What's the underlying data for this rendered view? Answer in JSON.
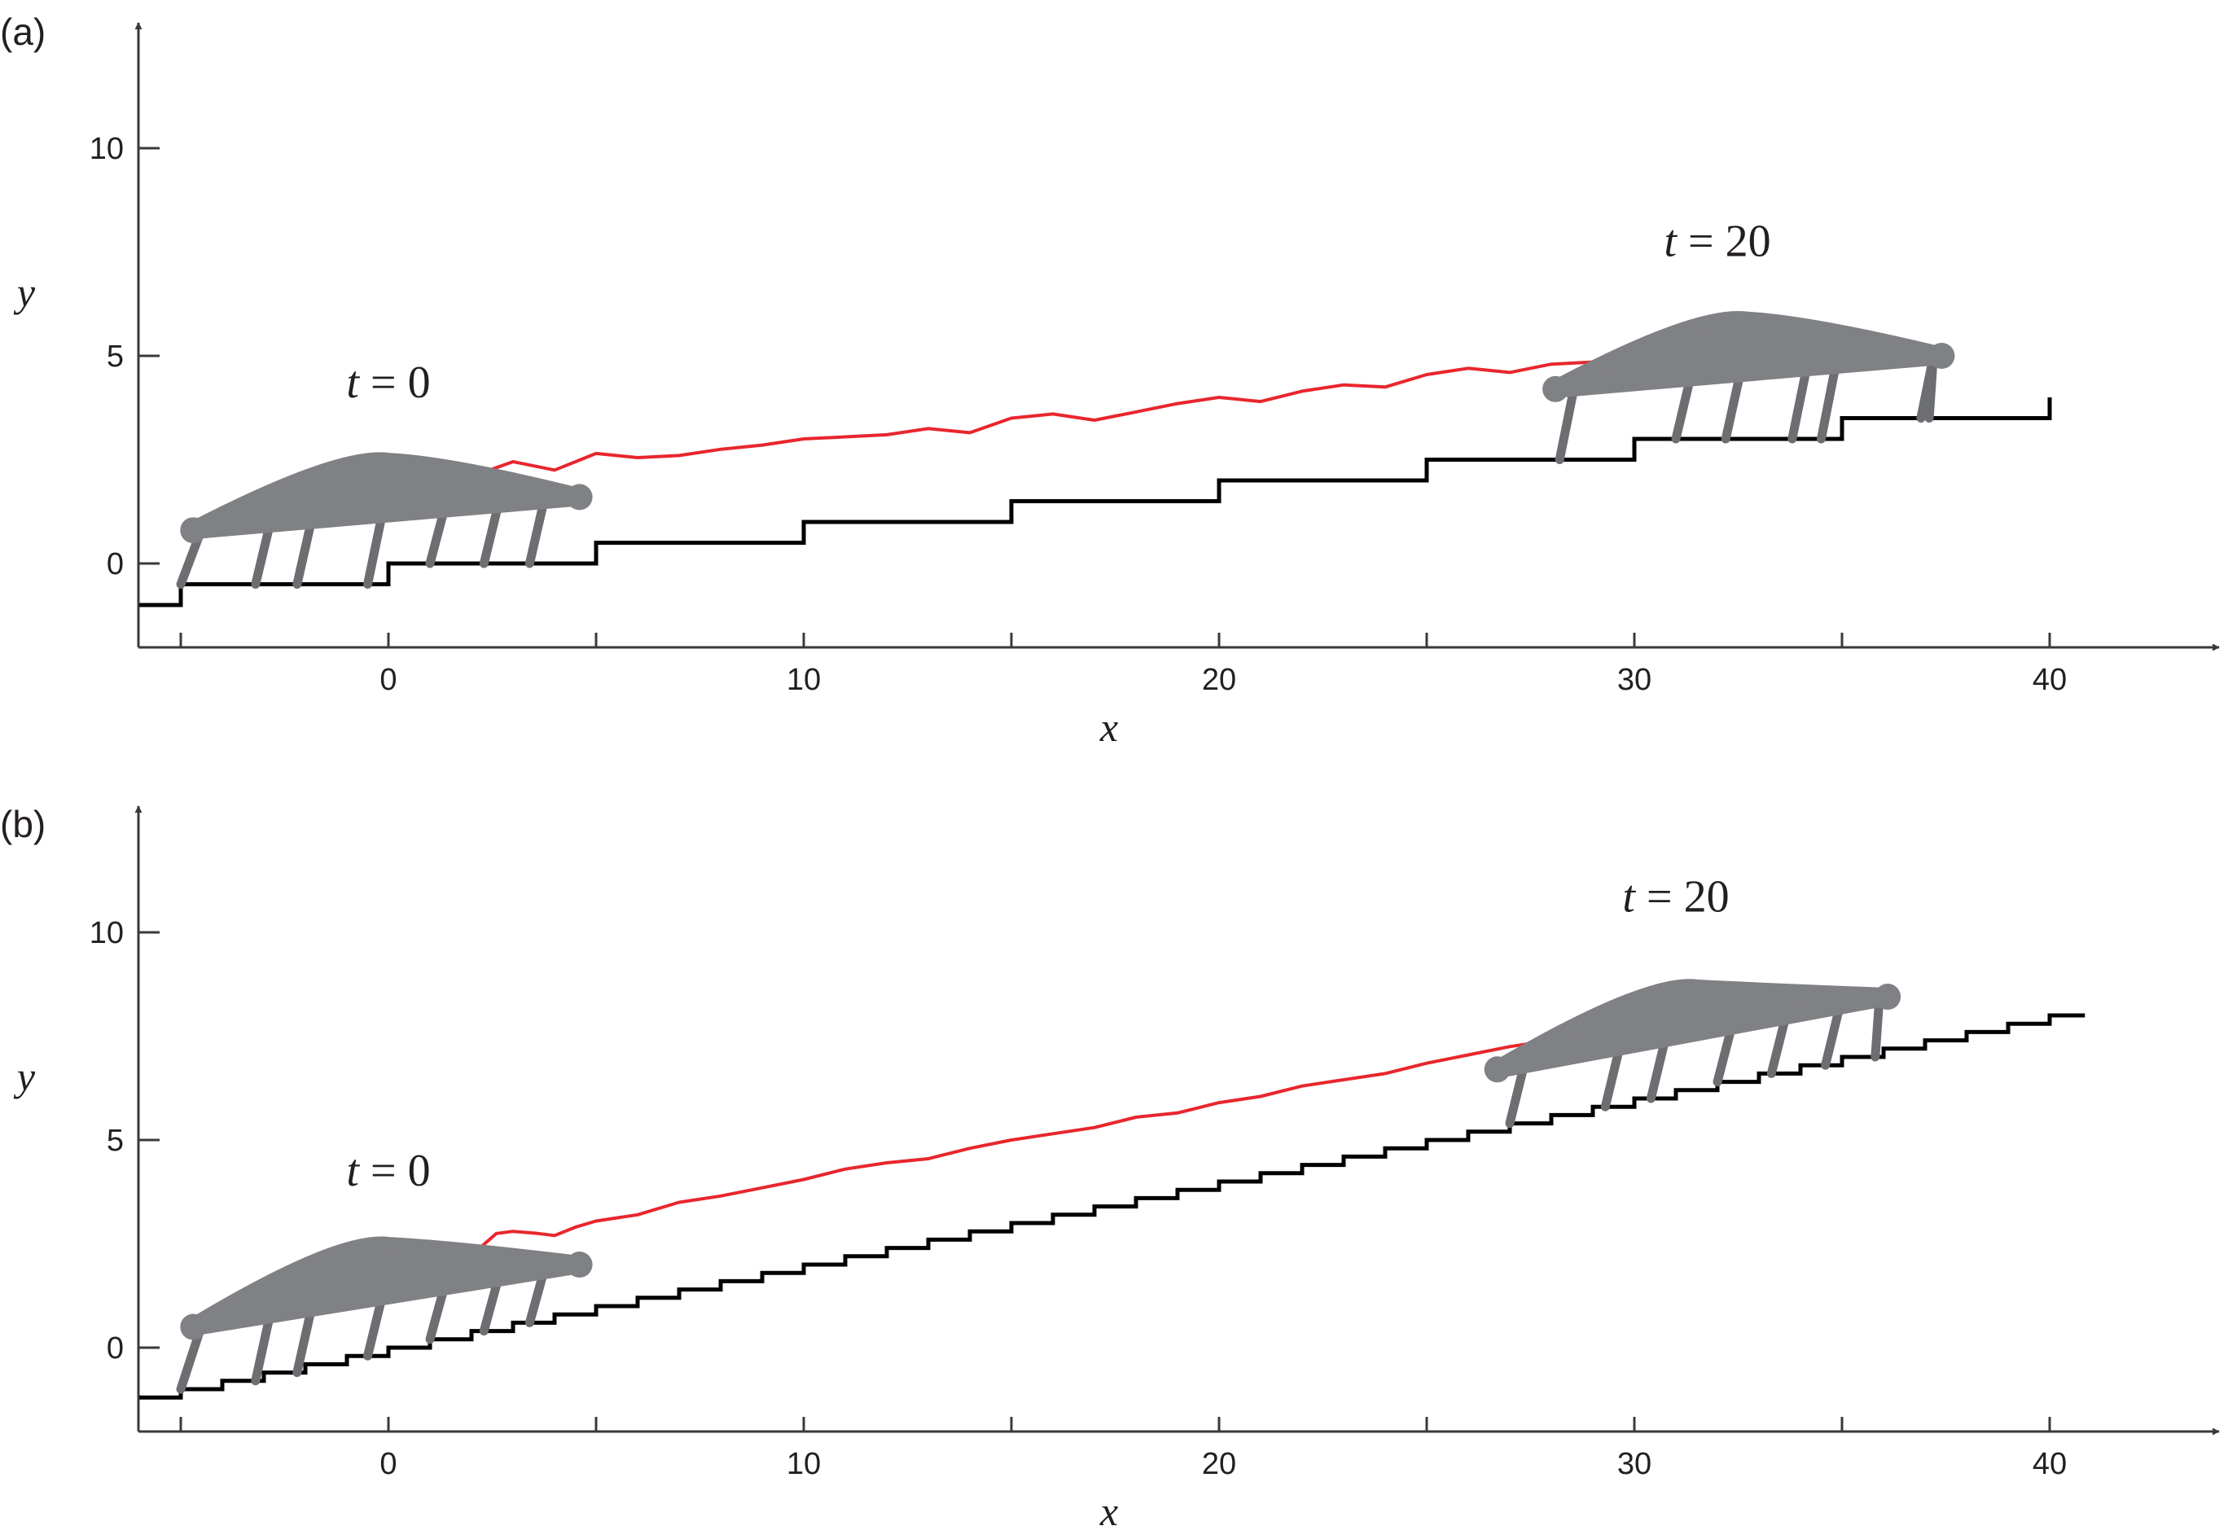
{
  "chart_data": [
    {
      "panel_label": "(a)",
      "type": "line",
      "title": "",
      "xlabel": "x",
      "ylabel": "y",
      "xlim": [
        -6,
        44
      ],
      "ylim": [
        -2,
        13
      ],
      "xticks": [
        -5,
        0,
        5,
        10,
        15,
        20,
        25,
        30,
        35,
        40
      ],
      "xtick_labels": [
        "",
        "0",
        "",
        "10",
        "",
        "20",
        "",
        "30",
        "",
        "40"
      ],
      "yticks": [
        0,
        5,
        10
      ],
      "ytick_labels": [
        "0",
        "5",
        "10"
      ],
      "series": [
        {
          "name": "terrain (steps)",
          "color": "#000000",
          "step_start_x": -6,
          "step_start_y": -1,
          "step_width": 5,
          "step_rise": 0.5,
          "step_first_x": -5,
          "step_end_x": 40,
          "step_end_y": 4
        },
        {
          "name": "body trajectory",
          "color": "#e8262d",
          "x": [
            2.3,
            3,
            4,
            5,
            6,
            7,
            8,
            9,
            10,
            11,
            12,
            13,
            14,
            15,
            16,
            17,
            18,
            19,
            20,
            21,
            22,
            23,
            24,
            25,
            26,
            27,
            28,
            29,
            29.8
          ],
          "y": [
            2.2,
            2.45,
            2.25,
            2.65,
            2.55,
            2.6,
            2.75,
            2.85,
            3.0,
            3.05,
            3.1,
            3.25,
            3.15,
            3.5,
            3.6,
            3.45,
            3.65,
            3.85,
            4.0,
            3.9,
            4.15,
            4.3,
            4.25,
            4.55,
            4.7,
            4.6,
            4.8,
            4.85,
            5.05
          ]
        }
      ],
      "annotations": [
        {
          "var": "t",
          "rest": " = 0",
          "x": 0,
          "y": 4
        },
        {
          "var": "t",
          "rest": " = 20",
          "x": 32,
          "y": 7.4
        }
      ],
      "robots": [
        {
          "name": "robot at t=0",
          "left": [
            -4.7,
            0.8
          ],
          "peak": [
            0,
            2.45
          ],
          "right": [
            4.6,
            1.6
          ],
          "feet": [
            -5,
            -3.2,
            -2.2,
            -0.5,
            1,
            2.3,
            3.4
          ]
        },
        {
          "name": "robot at t=20",
          "left": [
            28.1,
            4.2
          ],
          "peak": [
            32.7,
            5.85
          ],
          "right": [
            37.4,
            5.0
          ],
          "feet": [
            28.2,
            31,
            32.2,
            33.8,
            34.5,
            36.9,
            37.1
          ]
        }
      ]
    },
    {
      "panel_label": "(b)",
      "type": "line",
      "title": "",
      "xlabel": "x",
      "ylabel": "y",
      "xlim": [
        -6,
        44
      ],
      "ylim": [
        -2,
        13
      ],
      "xticks": [
        -5,
        0,
        5,
        10,
        15,
        20,
        25,
        30,
        35,
        40
      ],
      "xtick_labels": [
        "",
        "0",
        "",
        "10",
        "",
        "20",
        "",
        "30",
        "",
        "40"
      ],
      "yticks": [
        0,
        5,
        10
      ],
      "ytick_labels": [
        "0",
        "5",
        "10"
      ],
      "series": [
        {
          "name": "terrain (steps)",
          "color": "#000000",
          "step_start_x": -6,
          "step_start_y": -1.2,
          "step_width": 1,
          "step_rise": 0.2,
          "step_first_x": -5,
          "step_end_x": 40.8,
          "step_end_y": 7.95
        },
        {
          "name": "body trajectory",
          "color": "#e8262d",
          "x": [
            2.2,
            2.6,
            3,
            3.6,
            4,
            4.5,
            5,
            6,
            7,
            8,
            9,
            10,
            11,
            12,
            13,
            14,
            15,
            16,
            17,
            18,
            19,
            20,
            21,
            22,
            23,
            24,
            25,
            26,
            27,
            28,
            29.2
          ],
          "y": [
            2.4,
            2.75,
            2.8,
            2.75,
            2.7,
            2.9,
            3.05,
            3.2,
            3.5,
            3.65,
            3.85,
            4.05,
            4.3,
            4.45,
            4.55,
            4.8,
            5.0,
            5.15,
            5.3,
            5.55,
            5.65,
            5.9,
            6.05,
            6.3,
            6.45,
            6.6,
            6.85,
            7.05,
            7.25,
            7.4,
            7.7
          ]
        }
      ],
      "annotations": [
        {
          "var": "t",
          "rest": " = 0",
          "x": 0,
          "y": 3.9
        },
        {
          "var": "t",
          "rest": " = 20",
          "x": 31,
          "y": 10.5
        }
      ],
      "robots": [
        {
          "name": "robot at t=0",
          "left": [
            -4.7,
            0.5
          ],
          "peak": [
            0,
            2.45
          ],
          "right": [
            4.6,
            2.0
          ],
          "feet": [
            -5,
            -3.2,
            -2.2,
            -0.5,
            1,
            2.3,
            3.4
          ]
        },
        {
          "name": "robot at t=20",
          "left": [
            26.7,
            6.7
          ],
          "peak": [
            31.5,
            8.65
          ],
          "right": [
            36.1,
            8.45
          ],
          "feet": [
            27,
            29.3,
            30.4,
            32,
            33.3,
            34.6,
            35.8
          ]
        }
      ]
    }
  ]
}
